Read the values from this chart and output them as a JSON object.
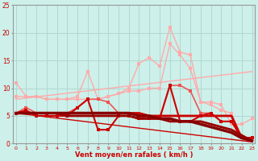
{
  "bg_color": "#cdf0ea",
  "grid_color": "#b0d8d0",
  "xlabel": "Vent moyen/en rafales ( km/h )",
  "xlabel_color": "#cc0000",
  "ylabel_color": "#cc0000",
  "x_ticks": [
    0,
    1,
    2,
    3,
    4,
    5,
    6,
    7,
    8,
    9,
    10,
    11,
    12,
    13,
    14,
    15,
    16,
    17,
    18,
    19,
    20,
    21,
    22,
    23
  ],
  "ylim": [
    0,
    25
  ],
  "yticks": [
    0,
    5,
    10,
    15,
    20,
    25
  ],
  "lines": [
    {
      "y": [
        11.0,
        8.5,
        8.5,
        8.0,
        8.0,
        8.0,
        8.5,
        13.0,
        8.0,
        8.5,
        9.0,
        10.0,
        14.5,
        15.5,
        14.0,
        21.0,
        16.5,
        16.0,
        7.5,
        7.0,
        6.0,
        5.5,
        1.0,
        1.0
      ],
      "color": "#ffaaaa",
      "lw": 1.0,
      "marker": "s",
      "ms": 2.5
    },
    {
      "y": [
        8.5,
        8.5,
        8.5,
        8.0,
        8.0,
        8.0,
        8.0,
        8.0,
        8.0,
        8.5,
        9.0,
        9.5,
        9.5,
        10.0,
        10.0,
        18.0,
        16.0,
        13.5,
        7.5,
        7.5,
        7.0,
        3.5,
        3.5,
        4.5
      ],
      "color": "#ffaaaa",
      "lw": 1.0,
      "marker": "s",
      "ms": 2.5
    },
    {
      "y": [
        5.5,
        6.5,
        5.5,
        5.5,
        5.5,
        5.5,
        6.5,
        8.0,
        8.0,
        7.5,
        5.5,
        5.5,
        5.0,
        4.5,
        4.5,
        10.5,
        10.5,
        9.5,
        5.5,
        5.5,
        4.0,
        4.0,
        1.0,
        1.0
      ],
      "color": "#ee5555",
      "lw": 1.2,
      "marker": "s",
      "ms": 2.5
    },
    {
      "y": [
        5.5,
        6.0,
        5.0,
        5.0,
        5.0,
        5.0,
        6.5,
        8.0,
        2.5,
        2.5,
        5.0,
        5.0,
        4.5,
        4.5,
        4.5,
        10.5,
        4.0,
        4.0,
        5.0,
        5.5,
        4.0,
        4.0,
        1.0,
        1.0
      ],
      "color": "#cc0000",
      "lw": 1.5,
      "marker": "s",
      "ms": 2.5
    },
    {
      "y": [
        5.5,
        5.5,
        5.5,
        5.5,
        5.5,
        5.5,
        5.5,
        5.5,
        5.5,
        5.5,
        5.5,
        5.5,
        5.5,
        5.0,
        5.0,
        5.0,
        5.0,
        5.0,
        5.0,
        5.0,
        5.0,
        5.0,
        1.0,
        1.0
      ],
      "color": "#cc0000",
      "lw": 2.0,
      "marker": "s",
      "ms": 2.0
    },
    {
      "y": [
        5.5,
        5.5,
        5.5,
        5.5,
        5.5,
        5.0,
        5.0,
        5.0,
        5.0,
        5.0,
        5.0,
        5.0,
        4.5,
        4.5,
        4.5,
        4.0,
        4.0,
        4.0,
        4.0,
        3.5,
        3.0,
        2.5,
        1.5,
        0.5
      ],
      "color": "#990000",
      "lw": 2.0,
      "marker": "s",
      "ms": 2.0
    },
    {
      "y": [
        5.5,
        5.5,
        5.5,
        5.5,
        5.5,
        5.5,
        5.5,
        5.5,
        5.5,
        5.5,
        5.5,
        5.5,
        5.0,
        5.0,
        4.5,
        4.5,
        4.0,
        4.0,
        3.5,
        3.0,
        2.5,
        2.0,
        1.0,
        0.5
      ],
      "color": "#880000",
      "lw": 2.5,
      "marker": "s",
      "ms": 2.0
    }
  ],
  "trend_line_down": {
    "x": [
      0,
      23
    ],
    "y": [
      5.5,
      0.3
    ],
    "color": "#cc0000",
    "lw": 1.0
  },
  "trend_line_up": {
    "x": [
      0,
      23
    ],
    "y": [
      8.0,
      13.0
    ],
    "color": "#ffaaaa",
    "lw": 1.0
  }
}
